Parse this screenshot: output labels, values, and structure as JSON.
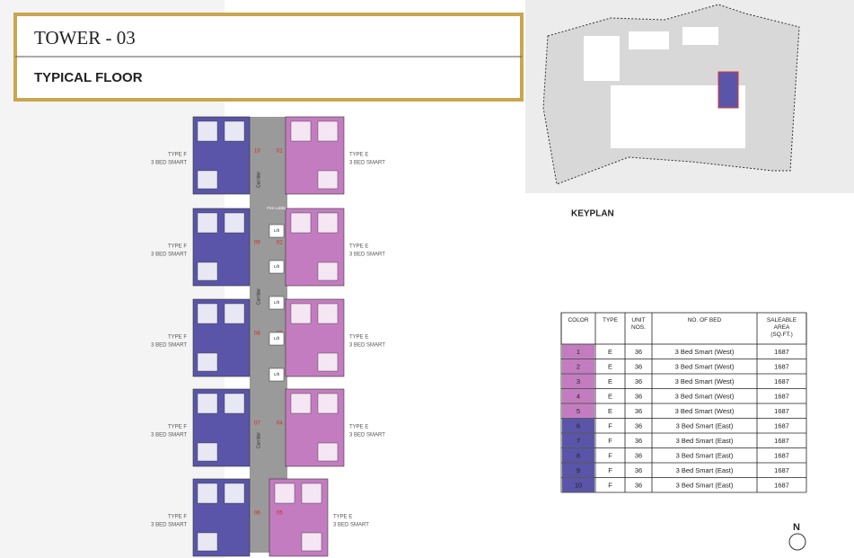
{
  "header": {
    "title": "TOWER - 03",
    "subtitle": "TYPICAL FLOOR"
  },
  "floor_plan": {
    "left_units": [
      {
        "type_label": "TYPE F",
        "bed_label": "3 BED SMART",
        "number": "10"
      },
      {
        "type_label": "TYPE F",
        "bed_label": "3 BED SMART",
        "number": "09"
      },
      {
        "type_label": "TYPE F",
        "bed_label": "3 BED SMART",
        "number": "08"
      },
      {
        "type_label": "TYPE F",
        "bed_label": "3 BED SMART",
        "number": "07"
      },
      {
        "type_label": "TYPE F",
        "bed_label": "3 BED SMART",
        "number": "06"
      }
    ],
    "right_units": [
      {
        "type_label": "TYPE E",
        "bed_label": "3 BED SMART",
        "number": "01"
      },
      {
        "type_label": "TYPE E",
        "bed_label": "3 BED SMART",
        "number": "02"
      },
      {
        "type_label": "TYPE E",
        "bed_label": "3 BED SMART",
        "number": "03"
      },
      {
        "type_label": "TYPE E",
        "bed_label": "3 BED SMART",
        "number": "04"
      },
      {
        "type_label": "TYPE E",
        "bed_label": "3 BED SMART",
        "number": "05"
      }
    ],
    "corridor_label": "Corridor",
    "lift_label": "Lift",
    "lobby_label": "Fire Lobby"
  },
  "keyplan": {
    "label": "KEYPLAN"
  },
  "table": {
    "headers": [
      "COLOR",
      "TYPE",
      "UNIT NOS.",
      "NO. OF BED",
      "SALEABLE AREA (SQ.FT.)"
    ],
    "colors": [
      "#c47cc0",
      "#c47cc0",
      "#c47cc0",
      "#c47cc0",
      "#c47cc0",
      "#5a55a8",
      "#5a55a8",
      "#5a55a8",
      "#5a55a8",
      "#5a55a8"
    ],
    "rows": [
      [
        "1",
        "E",
        "36",
        "3 Bed Smart (West)",
        "1687"
      ],
      [
        "2",
        "E",
        "36",
        "3 Bed Smart (West)",
        "1687"
      ],
      [
        "3",
        "E",
        "36",
        "3 Bed Smart (West)",
        "1687"
      ],
      [
        "4",
        "E",
        "36",
        "3 Bed Smart (West)",
        "1687"
      ],
      [
        "5",
        "E",
        "36",
        "3 Bed Smart (West)",
        "1687"
      ],
      [
        "6",
        "F",
        "36",
        "3 Bed Smart (East)",
        "1687"
      ],
      [
        "7",
        "F",
        "36",
        "3 Bed Smart (East)",
        "1687"
      ],
      [
        "8",
        "F",
        "36",
        "3 Bed Smart (East)",
        "1687"
      ],
      [
        "9",
        "F",
        "36",
        "3 Bed Smart (East)",
        "1687"
      ],
      [
        "10",
        "F",
        "36",
        "3 Bed Smart (East)",
        "1687"
      ]
    ]
  },
  "compass": "N"
}
